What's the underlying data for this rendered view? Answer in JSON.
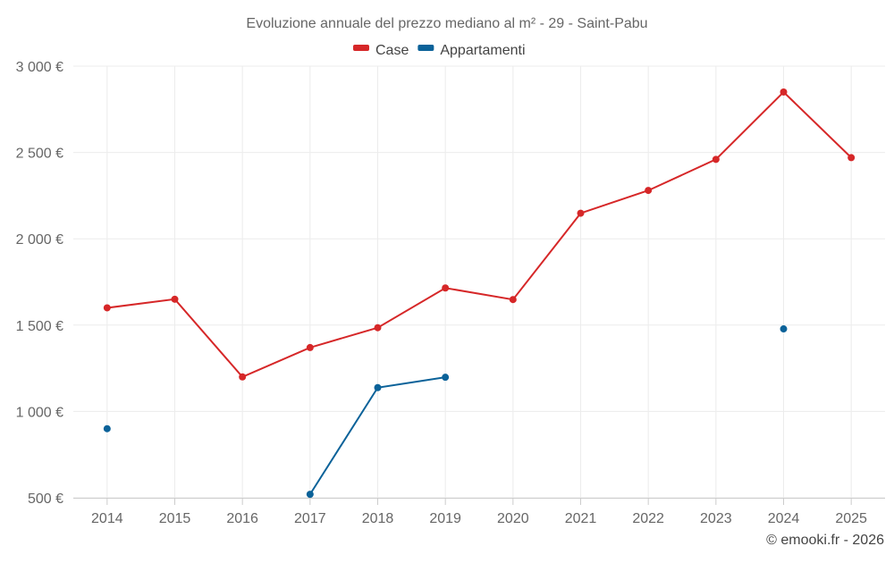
{
  "chart_data": {
    "type": "line",
    "title": "Evoluzione annuale del prezzo mediano al m² - 29 - Saint-Pabu",
    "x": [
      "2014",
      "2015",
      "2016",
      "2017",
      "2018",
      "2019",
      "2020",
      "2021",
      "2022",
      "2023",
      "2024",
      "2025"
    ],
    "y_ticks": [
      {
        "value": 500,
        "label": "500 €"
      },
      {
        "value": 1000,
        "label": "1 000 €"
      },
      {
        "value": 1500,
        "label": "1 500 €"
      },
      {
        "value": 2000,
        "label": "2 000 €"
      },
      {
        "value": 2500,
        "label": "2 500 €"
      },
      {
        "value": 3000,
        "label": "3 000 €"
      }
    ],
    "ylim": [
      500,
      3000
    ],
    "grid": true,
    "legend_position": "top-center",
    "series": [
      {
        "name": "Case",
        "color": "#d62728",
        "values": [
          1600,
          1650,
          1200,
          1370,
          1485,
          1715,
          1648,
          2148,
          2280,
          2460,
          2850,
          2470
        ]
      },
      {
        "name": "Appartamenti",
        "color": "#0b6299",
        "values": [
          900,
          null,
          null,
          520,
          1138,
          1198,
          null,
          null,
          null,
          null,
          1478,
          null
        ]
      }
    ]
  },
  "credit": "© emooki.fr - 2026"
}
